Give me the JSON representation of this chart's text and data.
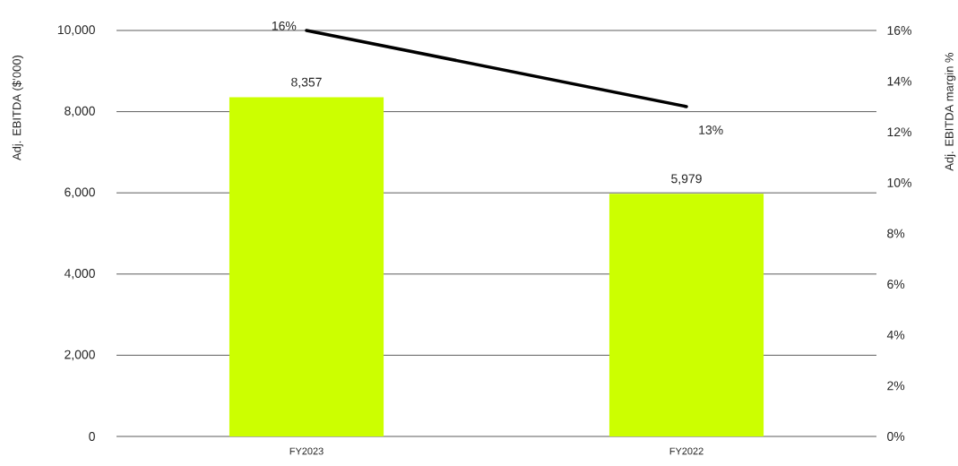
{
  "chart_data": {
    "type": "bar",
    "categories": [
      "FY2023",
      "FY2022"
    ],
    "ylabel": "Adj. EBITDA ($’000)",
    "y2label": "Adj. EBITDA margin %",
    "series": [
      {
        "color": "#ccff00",
        "values": [
          8357,
          5979
        ],
        "value_labels": [
          "8,357",
          "5,979"
        ]
      },
      {
        "type": "line",
        "axis": "y2",
        "color": "#000000",
        "values": [
          16,
          13
        ],
        "value_labels": [
          "16%",
          "13%"
        ]
      }
    ],
    "ylim": [
      0,
      10000
    ],
    "yticks": [
      0,
      {
        "value": 2000,
        "label": "2,000"
      },
      {
        "value": 4000,
        "label": "4,000"
      },
      {
        "value": 6000,
        "label": "6,000"
      },
      {
        "value": 8000,
        "label": "8,000"
      },
      {
        "value": 10000,
        "label": "10,000"
      }
    ],
    "y2lim": [
      0,
      16
    ],
    "y2ticks": [
      {
        "value": 0,
        "label": "0%"
      },
      {
        "value": 2,
        "label": "2%"
      },
      {
        "value": 4,
        "label": "4%"
      },
      {
        "value": 6,
        "label": "6%"
      },
      {
        "value": 8,
        "label": "8%"
      },
      {
        "value": 10,
        "label": "10%"
      },
      {
        "value": 12,
        "label": "12%"
      },
      {
        "value": 14,
        "label": "14%"
      },
      {
        "value": 16,
        "label": "16%"
      }
    ],
    "grid": "y"
  }
}
